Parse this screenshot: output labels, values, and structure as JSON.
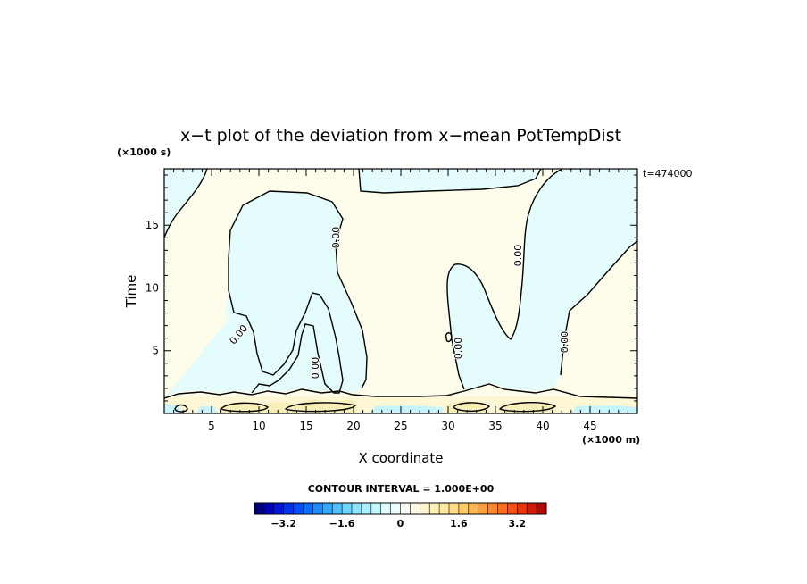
{
  "chart_data": {
    "type": "heatmap",
    "title": "x−t plot of the deviation from x−mean PotTempDist",
    "xlabel": "X coordinate",
    "ylabel": "Time",
    "x_unit": "(×1000 m)",
    "y_unit": "(×1000 s)",
    "time_stamp": "t=474000",
    "xlim": [
      0,
      50
    ],
    "ylim": [
      0,
      19.5
    ],
    "x_ticks": [
      5,
      10,
      15,
      20,
      25,
      30,
      35,
      40,
      45
    ],
    "x_tick_labels": [
      "5",
      "10",
      "15",
      "20",
      "25",
      "30",
      "35",
      "40",
      "45"
    ],
    "y_ticks": [
      5,
      10,
      15
    ],
    "y_tick_labels": [
      "5",
      "10",
      "15"
    ],
    "contour_level": 0.0,
    "contour_labels": [
      "0.00",
      "0.00",
      "0.00",
      "0.00",
      "0.00",
      "0.00"
    ],
    "contour_interval_text": "CONTOUR INTERVAL = 1.000E+00",
    "regions": [
      {
        "sign": "negative",
        "description": "upper-left corner",
        "approx_value": -0.3
      },
      {
        "sign": "negative",
        "description": "left plume x≈7–21",
        "approx_value": -0.3
      },
      {
        "sign": "negative",
        "description": "right plume x≈30–45",
        "approx_value": -0.3
      },
      {
        "sign": "negative",
        "description": "top strip x≈20–38",
        "approx_value": -0.3
      },
      {
        "sign": "positive",
        "description": "background field",
        "approx_value": 0.3
      },
      {
        "sign": "positive",
        "description": "near-surface band t<1.5",
        "approx_value": 0.6
      }
    ],
    "colorbar": {
      "range": [
        -4,
        4
      ],
      "tick_values": [
        -3.2,
        -1.6,
        0,
        1.6,
        3.2
      ],
      "tick_labels": [
        "−3.2",
        "−1.6",
        "0",
        "1.6",
        "3.2"
      ],
      "colors": [
        "#000080",
        "#0000b4",
        "#0014dc",
        "#0032f0",
        "#0050ff",
        "#0a6eff",
        "#1e8cff",
        "#32a8ff",
        "#50c0ff",
        "#6ed4ff",
        "#8ce4ff",
        "#aaf0ff",
        "#c4f8ff",
        "#dcfcff",
        "#eefeff",
        "#fafdf5",
        "#fffbe6",
        "#fff6d0",
        "#fff0b8",
        "#ffe8a0",
        "#ffdc84",
        "#ffcc68",
        "#ffb850",
        "#ffa03c",
        "#ff882c",
        "#ff6e1e",
        "#f85014",
        "#e8320c",
        "#d21a08",
        "#b40a04"
      ]
    },
    "grid": false,
    "colors": {
      "negative_fill": "#e4fcfc",
      "positive_fill": "#fefcea",
      "surface_positive": "#fbf2c4",
      "contour": "#000000"
    }
  }
}
